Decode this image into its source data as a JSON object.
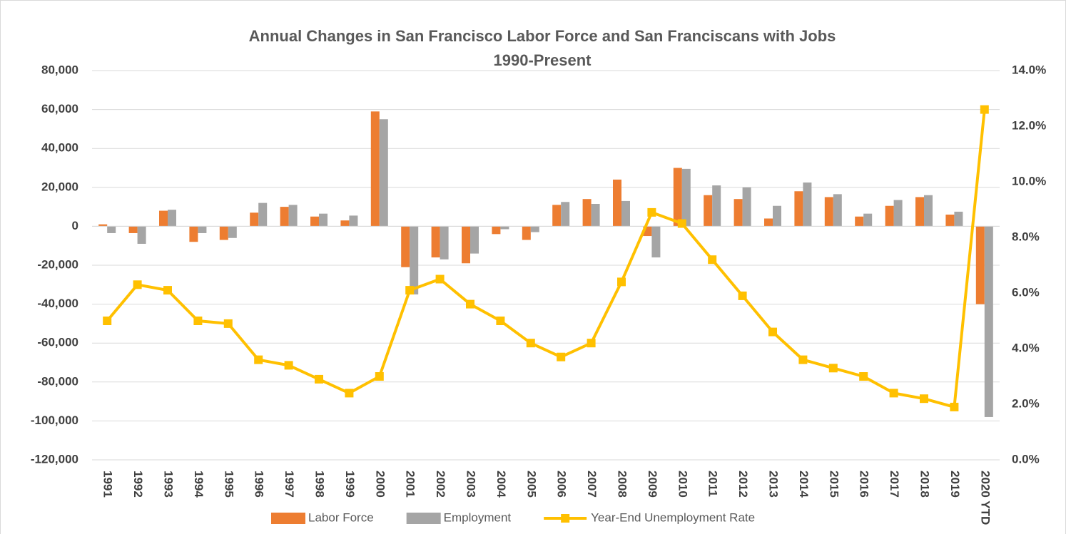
{
  "chart_data": {
    "type": "bar",
    "title": "Annual Changes in San Francisco Labor Force and San Franciscans with Jobs",
    "subtitle": "1990-Present",
    "categories": [
      "1991",
      "1992",
      "1993",
      "1994",
      "1995",
      "1996",
      "1997",
      "1998",
      "1999",
      "2000",
      "2001",
      "2002",
      "2003",
      "2004",
      "2005",
      "2006",
      "2007",
      "2008",
      "2009",
      "2010",
      "2011",
      "2012",
      "2013",
      "2014",
      "2015",
      "2016",
      "2017",
      "2018",
      "2019",
      "2020 YTD"
    ],
    "series": [
      {
        "name": "Labor Force",
        "color": "#ed7d31",
        "values": [
          1000,
          -3500,
          8000,
          -8000,
          -7000,
          7000,
          10000,
          5000,
          3000,
          59000,
          -21000,
          -16000,
          -19000,
          -4000,
          -7000,
          11000,
          14000,
          24000,
          -5000,
          30000,
          16000,
          14000,
          4000,
          18000,
          15000,
          5000,
          10500,
          15000,
          6000,
          -40000
        ]
      },
      {
        "name": "Employment",
        "color": "#a5a5a5",
        "values": [
          -3500,
          -9000,
          8500,
          -3500,
          -6000,
          12000,
          11000,
          6500,
          5500,
          55000,
          -35000,
          -17000,
          -14000,
          -1500,
          -3000,
          12500,
          11500,
          13000,
          -16000,
          29500,
          21000,
          20000,
          10500,
          22500,
          16500,
          6500,
          13500,
          16000,
          7500,
          -98000
        ]
      },
      {
        "name": "Year-End Unemployment Rate",
        "color": "#ffc000",
        "type": "line",
        "axis": "y2",
        "values": [
          5.0,
          6.3,
          6.1,
          5.0,
          4.9,
          3.6,
          3.4,
          2.9,
          2.4,
          3.0,
          6.1,
          6.5,
          5.6,
          5.0,
          4.2,
          3.7,
          4.2,
          6.4,
          8.9,
          8.5,
          7.2,
          5.9,
          4.6,
          3.6,
          3.3,
          3.0,
          2.4,
          2.2,
          1.9,
          12.6
        ]
      }
    ],
    "ylim": [
      -120000,
      80000
    ],
    "yticks": [
      {
        "value": -120000,
        "label": "-120,000"
      },
      {
        "value": -100000,
        "label": "-100,000"
      },
      {
        "value": -80000,
        "label": "-80,000"
      },
      {
        "value": -60000,
        "label": "-60,000"
      },
      {
        "value": -40000,
        "label": "-40,000"
      },
      {
        "value": -20000,
        "label": "-20,000"
      },
      0,
      {
        "value": 20000,
        "label": "20,000"
      },
      {
        "value": 40000,
        "label": "40,000"
      },
      {
        "value": 60000,
        "label": "60,000"
      },
      {
        "value": 80000,
        "label": "80,000"
      }
    ],
    "y2lim": [
      0,
      14
    ],
    "y2ticks": [
      {
        "value": 0,
        "label": "0.0%"
      },
      {
        "value": 2,
        "label": "2.0%"
      },
      {
        "value": 4,
        "label": "4.0%"
      },
      {
        "value": 6,
        "label": "6.0%"
      },
      {
        "value": 8,
        "label": "8.0%"
      },
      {
        "value": 10,
        "label": "10.0%"
      },
      {
        "value": 12,
        "label": "12.0%"
      },
      {
        "value": 14,
        "label": "14.0%"
      }
    ],
    "grid": true,
    "legend": "bottom"
  }
}
